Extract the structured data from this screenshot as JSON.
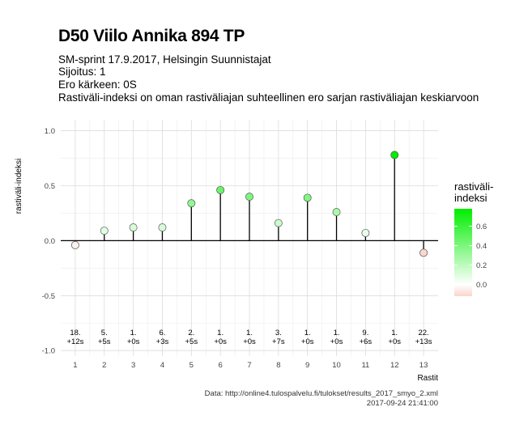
{
  "header": {
    "title": "D50 Viilo Annika 894 TP",
    "subtitle_lines": [
      "SM-sprint 17.9.2017, Helsingin Suunnistajat",
      "Sijoitus: 1",
      "Ero kärkeen: 0S",
      "Rastiväli-indeksi on oman rastiväliajan suhteellinen ero sarjan rastiväliajan keskiarvoon"
    ]
  },
  "caption": {
    "source": "Data: http://online4.tulospalvelu.fi/tulokset/results_2017_smyo_2.xml",
    "timestamp": "2017-09-24 21:41:00"
  },
  "legend": {
    "title": "rastiväli-\nindeksi",
    "ticks": [
      0.0,
      0.2,
      0.4,
      0.6
    ],
    "tick_labels": [
      "0.0",
      "0.2",
      "0.4",
      "0.6"
    ],
    "range": [
      -0.12,
      0.78
    ],
    "low_color": "#fad4cc",
    "mid_color": "#ffffff",
    "high_color": "#00ee00"
  },
  "chart_data": {
    "type": "lollipop",
    "xlabel": "Rastit",
    "ylabel": "rastiväli-indeksi",
    "xlim": [
      0.5,
      13.5
    ],
    "ylim": [
      -1.05,
      1.1
    ],
    "x_ticks": [
      1,
      2,
      3,
      4,
      5,
      6,
      7,
      8,
      9,
      10,
      11,
      12,
      13
    ],
    "y_ticks": [
      -1.0,
      -0.5,
      0.0,
      0.5,
      1.0
    ],
    "y_tick_labels": [
      "-1.0",
      "-0.5",
      "0.0",
      "0.5",
      "1.0"
    ],
    "grid": true,
    "legend_position": "right",
    "points": [
      {
        "x": 1,
        "y": -0.04,
        "rank": "18.",
        "diff": "+12s"
      },
      {
        "x": 2,
        "y": 0.09,
        "rank": "5.",
        "diff": "+5s"
      },
      {
        "x": 3,
        "y": 0.12,
        "rank": "1.",
        "diff": "+0s"
      },
      {
        "x": 4,
        "y": 0.12,
        "rank": "6.",
        "diff": "+3s"
      },
      {
        "x": 5,
        "y": 0.34,
        "rank": "2.",
        "diff": "+5s"
      },
      {
        "x": 6,
        "y": 0.46,
        "rank": "1.",
        "diff": "+0s"
      },
      {
        "x": 7,
        "y": 0.4,
        "rank": "1.",
        "diff": "+0s"
      },
      {
        "x": 8,
        "y": 0.16,
        "rank": "3.",
        "diff": "+7s"
      },
      {
        "x": 9,
        "y": 0.39,
        "rank": "1.",
        "diff": "+0s"
      },
      {
        "x": 10,
        "y": 0.26,
        "rank": "1.",
        "diff": "+0s"
      },
      {
        "x": 11,
        "y": 0.07,
        "rank": "9.",
        "diff": "+6s"
      },
      {
        "x": 12,
        "y": 0.78,
        "rank": "1.",
        "diff": "+0s"
      },
      {
        "x": 13,
        "y": -0.11,
        "rank": "22.",
        "diff": "+13s"
      }
    ]
  }
}
